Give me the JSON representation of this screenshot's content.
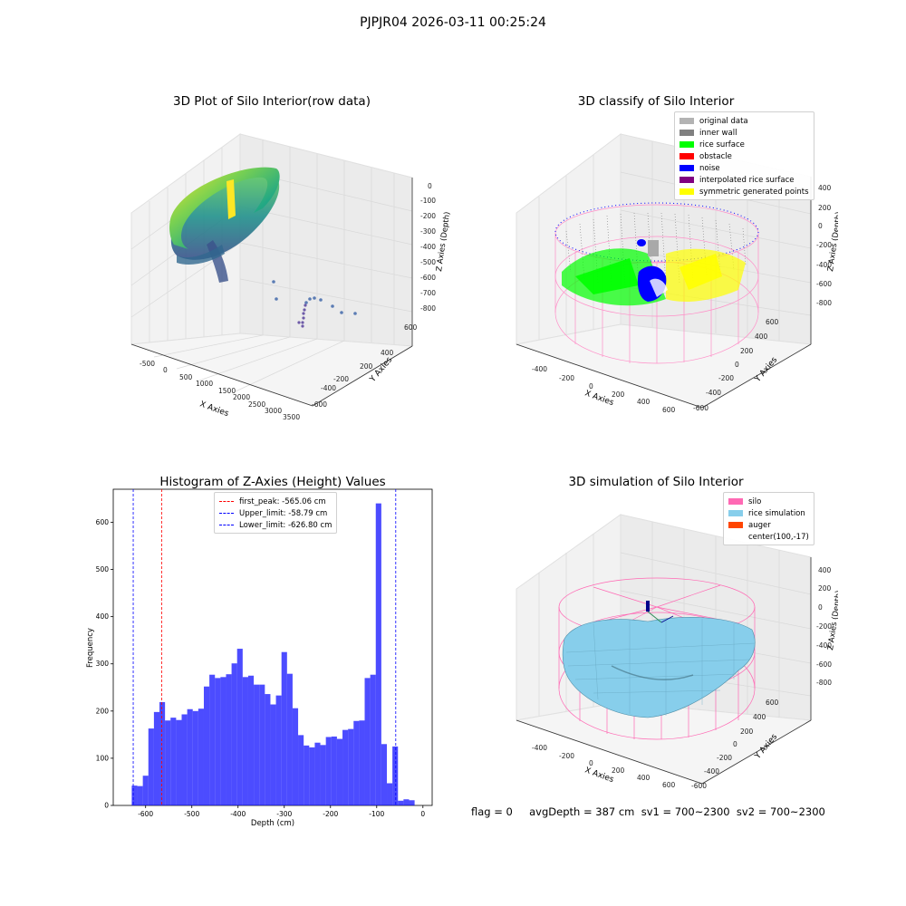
{
  "suptitle": "PJPJR04 2026-03-11 00:25:24",
  "panels": {
    "raw": {
      "title": "3D Plot of Silo Interior(row data)",
      "xlabel": "X Axies",
      "ylabel": "Y Axies",
      "zlabel": "Z Axies (Depth)",
      "xticks": [
        "-500",
        "0",
        "500",
        "1000",
        "1500",
        "2000",
        "2500",
        "3000",
        "3500"
      ],
      "yticks": [
        "600",
        "400",
        "200",
        "0",
        "-200",
        "-400",
        "-600"
      ],
      "zticks": [
        "0",
        "-100",
        "-200",
        "-300",
        "-400",
        "-500",
        "-600",
        "-700",
        "-800"
      ]
    },
    "classify": {
      "title": "3D classify of Silo Interior",
      "xlabel": "X Axies",
      "ylabel": "Y Axies",
      "zlabel": "Z Axies (Depth)",
      "xticks": [
        "-400",
        "-200",
        "0",
        "200",
        "400",
        "600"
      ],
      "yticks": [
        "600",
        "400",
        "200",
        "0",
        "-200",
        "-400",
        "-600"
      ],
      "zticks": [
        "400",
        "200",
        "0",
        "-200",
        "-400",
        "-600",
        "-800"
      ],
      "legend": [
        {
          "label": "original data",
          "color": "#b3b3b3"
        },
        {
          "label": "inner wall",
          "color": "#808080"
        },
        {
          "label": "rice surface",
          "color": "#00ff00"
        },
        {
          "label": "obstacle",
          "color": "#ff0000"
        },
        {
          "label": "noise",
          "color": "#0000ff"
        },
        {
          "label": "interpolated rice surface",
          "color": "#800080"
        },
        {
          "label": "symmetric generated points",
          "color": "#ffff00"
        }
      ]
    },
    "simulation": {
      "title": "3D simulation of Silo Interior",
      "xlabel": "X Axies",
      "ylabel": "Y Axies",
      "zlabel": "Z Axies (Depth)",
      "xticks": [
        "-400",
        "-200",
        "0",
        "200",
        "400",
        "600"
      ],
      "yticks": [
        "600",
        "400",
        "200",
        "0",
        "-200",
        "-400",
        "-600"
      ],
      "zticks": [
        "400",
        "200",
        "0",
        "-200",
        "-400",
        "-600",
        "-800"
      ],
      "legend": [
        {
          "label": "silo",
          "color": "#ff69b4"
        },
        {
          "label": "rice simulation",
          "color": "#87ceeb"
        },
        {
          "label": "auger",
          "color": "#ff4500"
        },
        {
          "label": "center(100,-17)",
          "color": ""
        }
      ]
    }
  },
  "status_text": "flag = 0     avgDepth = 387 cm  sv1 = 700~2300  sv2 = 700~2300",
  "chart_data": [
    {
      "type": "bar",
      "title": "Histogram of Z-Axies (Height) Values",
      "xlabel": "Depth (cm)",
      "ylabel": "Frequency",
      "xlim": [
        -670,
        20
      ],
      "ylim": [
        0,
        670
      ],
      "xticks": [
        -600,
        -500,
        -400,
        -300,
        -200,
        -100,
        0
      ],
      "yticks": [
        0,
        100,
        200,
        300,
        400,
        500,
        600
      ],
      "bar_color": "#0000ff",
      "bin_start": -630,
      "bin_width": 12,
      "values": [
        42,
        41,
        63,
        163,
        198,
        219,
        180,
        186,
        181,
        193,
        204,
        200,
        205,
        252,
        277,
        270,
        272,
        278,
        301,
        332,
        272,
        275,
        256,
        256,
        236,
        214,
        233,
        325,
        279,
        206,
        149,
        127,
        123,
        133,
        128,
        145,
        146,
        141,
        160,
        162,
        179,
        180,
        270,
        277,
        640,
        130,
        47,
        125,
        10,
        13,
        11
      ],
      "lines": [
        {
          "label": "first_peak: -565.06 cm",
          "x": -565.06,
          "color": "#ff0000"
        },
        {
          "label": "Upper_limit: -58.79 cm",
          "x": -58.79,
          "color": "#0000ff"
        },
        {
          "label": "Lower_limit: -626.80 cm",
          "x": -626.8,
          "color": "#0000ff"
        }
      ],
      "grid": false,
      "legend_position": "top-center"
    }
  ]
}
